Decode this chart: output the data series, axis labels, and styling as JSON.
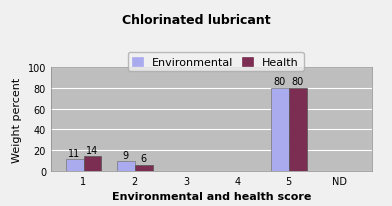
{
  "title": "Chlorinated lubricant",
  "xlabel": "Environmental and health score",
  "ylabel": "Weight percent",
  "categories": [
    "1",
    "2",
    "3",
    "4",
    "5",
    "ND"
  ],
  "environmental_values": [
    11,
    9,
    0,
    0,
    80,
    0
  ],
  "health_values": [
    14,
    6,
    0,
    0,
    80,
    0
  ],
  "env_color": "#aaaaee",
  "health_color": "#7b2d52",
  "ylim": [
    0,
    100
  ],
  "yticks": [
    0,
    20,
    40,
    60,
    80,
    100
  ],
  "bar_width": 0.35,
  "plot_bg_color": "#bebebe",
  "fig_bg_color": "#f0f0f0",
  "title_fontsize": 9,
  "axis_label_fontsize": 8,
  "tick_fontsize": 7,
  "legend_fontsize": 8,
  "annotation_fontsize": 7
}
